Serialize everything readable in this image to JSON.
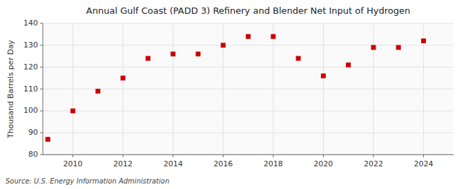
{
  "chart_data": {
    "type": "scatter",
    "title": "Annual Gulf Coast (PADD 3) Refinery and Blender Net Input of Hydrogen",
    "ylabel": "Thousand Barrels per Day",
    "source": "Source: U.S. Energy Information Administration",
    "x": [
      2009,
      2010,
      2011,
      2012,
      2013,
      2014,
      2015,
      2016,
      2017,
      2018,
      2019,
      2020,
      2021,
      2022,
      2023,
      2024
    ],
    "values": [
      87,
      100,
      109,
      115,
      124,
      126,
      126,
      130,
      134,
      134,
      124,
      116,
      121,
      129,
      129,
      132
    ],
    "color": "#cc0000",
    "marker": "square",
    "xlim": [
      2008.8,
      2025.2
    ],
    "ylim": [
      80,
      140
    ],
    "xticks": [
      2010,
      2012,
      2014,
      2016,
      2018,
      2020,
      2022,
      2024
    ],
    "yticks": [
      80,
      90,
      100,
      110,
      120,
      130,
      140
    ],
    "grid": true
  }
}
